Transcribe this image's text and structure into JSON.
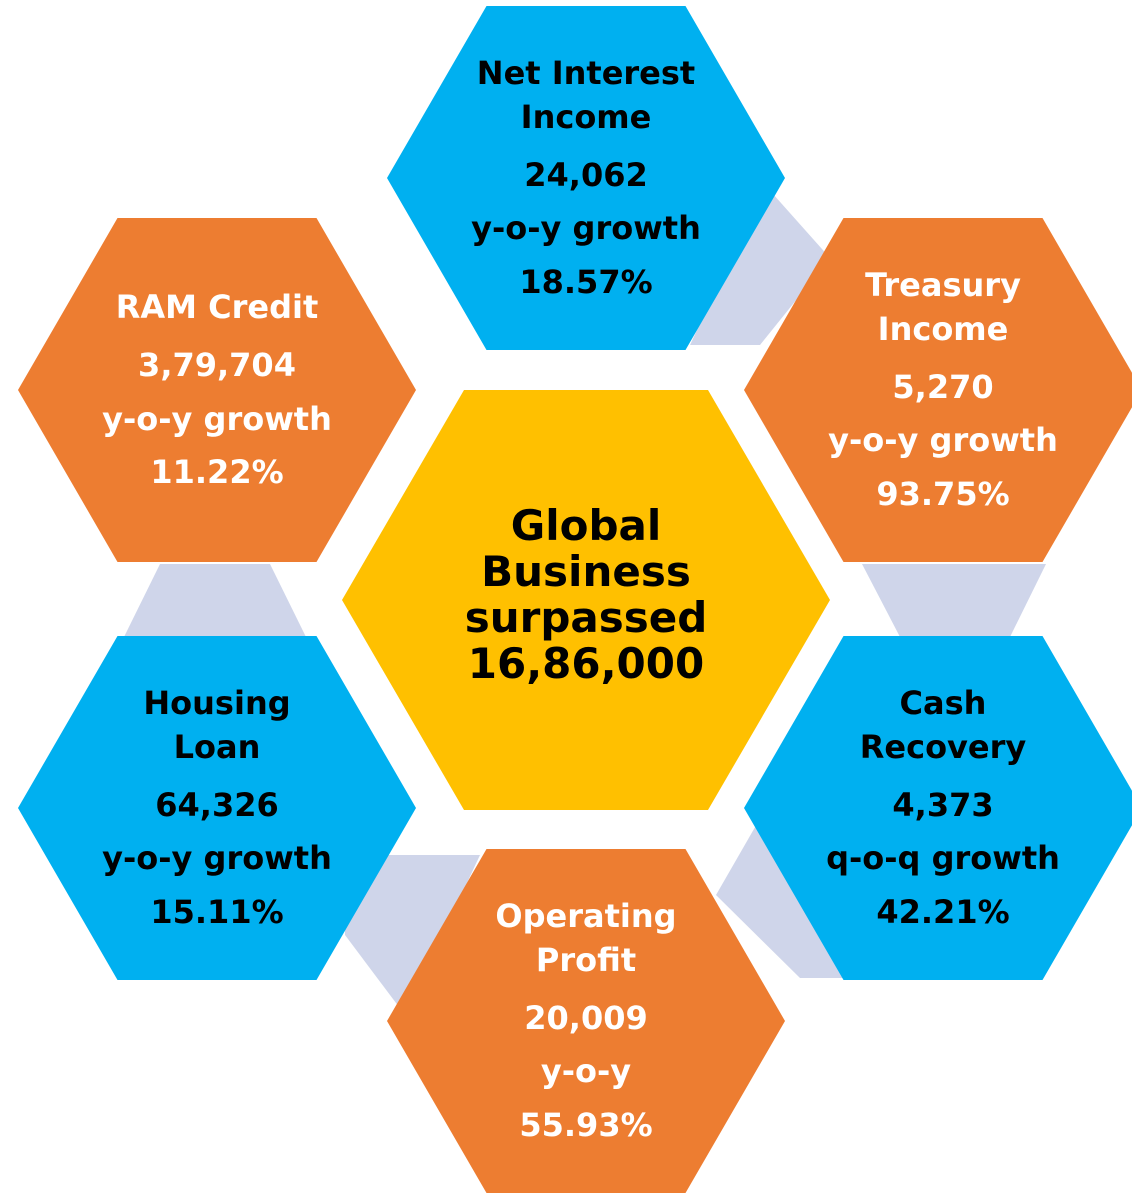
{
  "center": {
    "title": "Global Business surpassed",
    "value": "16,86,000"
  },
  "hexagons": [
    {
      "title": "Net Interest Income",
      "value": "24,062",
      "metric": "y-o-y growth",
      "change": "18.57%"
    },
    {
      "title": "Treasury Income",
      "value": "5,270",
      "metric": "y-o-y growth",
      "change": "93.75%"
    },
    {
      "title": "Cash Recovery",
      "value": "4,373",
      "metric": "q-o-q growth",
      "change": "42.21%"
    },
    {
      "title": "Operating Profit",
      "value": "20,009",
      "metric": "y-o-y",
      "change": "55.93%"
    },
    {
      "title": "Housing Loan",
      "value": "64,326",
      "metric": "y-o-y growth",
      "change": "15.11%"
    },
    {
      "title": "RAM Credit",
      "value": "3,79,704",
      "metric": "y-o-y growth",
      "change": "11.22%"
    }
  ]
}
